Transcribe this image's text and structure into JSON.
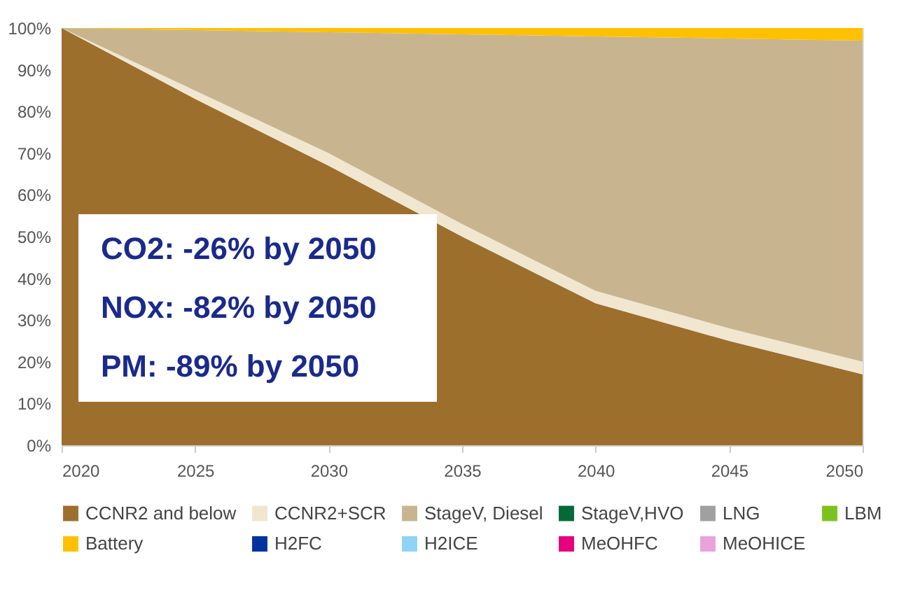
{
  "chart_data": {
    "type": "area",
    "stacked": true,
    "x": [
      2020,
      2025,
      2030,
      2035,
      2040,
      2045,
      2050
    ],
    "series": [
      {
        "name": "CCNR2 and below",
        "color": "#9c6f2c",
        "values": [
          100,
          83,
          67,
          50,
          34,
          25,
          17
        ]
      },
      {
        "name": "CCNR2+SCR",
        "color": "#f1e6d0",
        "values": [
          0,
          2,
          3,
          3,
          3,
          3,
          3
        ]
      },
      {
        "name": "StageV, Diesel",
        "color": "#c8b590",
        "values": [
          0,
          14.5,
          29,
          45.5,
          61,
          69.5,
          77
        ]
      },
      {
        "name": "StageV,HVO",
        "color": "#006a36",
        "values": [
          null,
          null,
          null,
          null,
          null,
          null,
          null
        ]
      },
      {
        "name": "LNG",
        "color": "#a0a0a0",
        "values": [
          null,
          null,
          null,
          null,
          null,
          null,
          null
        ]
      },
      {
        "name": "LBM",
        "color": "#7cc21e",
        "values": [
          null,
          null,
          null,
          null,
          null,
          null,
          null
        ]
      },
      {
        "name": "Battery",
        "color": "#ffc000",
        "values": [
          0,
          0.5,
          1,
          1.5,
          2,
          2.5,
          3
        ]
      },
      {
        "name": "H2FC",
        "color": "#0033a0",
        "values": [
          null,
          null,
          null,
          null,
          null,
          null,
          null
        ]
      },
      {
        "name": "H2ICE",
        "color": "#8fd3f5",
        "values": [
          null,
          null,
          null,
          null,
          null,
          null,
          null
        ]
      },
      {
        "name": "MeOHFC",
        "color": "#e6007e",
        "values": [
          null,
          null,
          null,
          null,
          null,
          null,
          null
        ]
      },
      {
        "name": "MeOHICE",
        "color": "#eaa2dc",
        "values": [
          null,
          null,
          null,
          null,
          null,
          null,
          null
        ]
      }
    ],
    "xlim": [
      2020,
      2050
    ],
    "xticks": [
      2020,
      2025,
      2030,
      2035,
      2040,
      2045,
      2050
    ],
    "ylim": [
      0,
      100
    ],
    "yticks": [
      {
        "value": 0,
        "label": "0%"
      },
      {
        "value": 10,
        "label": "10%"
      },
      {
        "value": 20,
        "label": "20%"
      },
      {
        "value": 30,
        "label": "30%"
      },
      {
        "value": 40,
        "label": "40%"
      },
      {
        "value": 50,
        "label": "50%"
      },
      {
        "value": 60,
        "label": "60%"
      },
      {
        "value": 70,
        "label": "70%"
      },
      {
        "value": 80,
        "label": "80%"
      },
      {
        "value": 90,
        "label": "90%"
      },
      {
        "value": 100,
        "label": "100%"
      }
    ],
    "annotations": [
      "CO2: -26% by 2050",
      "NOx: -82% by 2050",
      "PM: -89% by 2050"
    ],
    "grid": false,
    "legend": "bottom"
  }
}
